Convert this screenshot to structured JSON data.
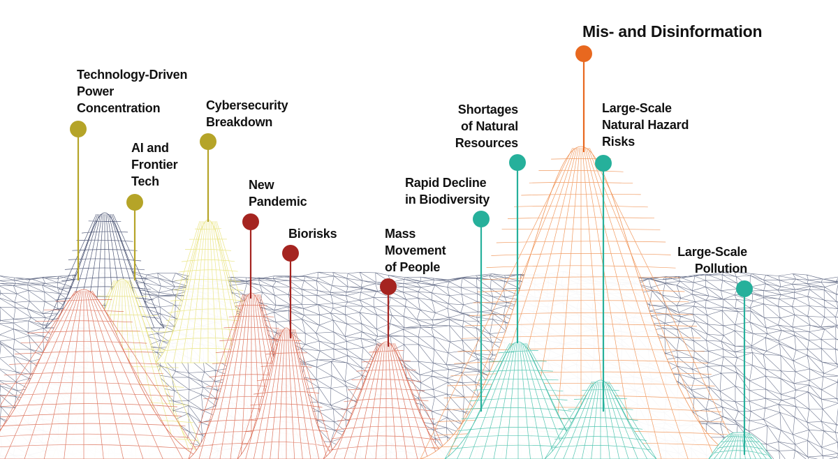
{
  "colors": {
    "background": "#ffffff",
    "terrain_mesh": "#3a4466",
    "technological": "#b5a428",
    "technological_mesh": "#e8e27a",
    "societal": "#a52420",
    "societal_mesh": "#d9674f",
    "misinformation": "#e8681f",
    "misinformation_mesh": "#ef8f4f",
    "environmental": "#26b09b",
    "environmental_mesh": "#3fbfa7",
    "label_text": "#111111"
  },
  "risks": [
    {
      "id": "tech-power",
      "label": "Technology-Driven\nPower\nConcentration",
      "group": "technological"
    },
    {
      "id": "ai-frontier",
      "label": "AI and\nFrontier\nTech",
      "group": "technological"
    },
    {
      "id": "cybersecurity",
      "label": "Cybersecurity\nBreakdown",
      "group": "technological"
    },
    {
      "id": "new-pandemic",
      "label": "New\nPandemic",
      "group": "societal"
    },
    {
      "id": "biorisks",
      "label": "Biorisks",
      "group": "societal"
    },
    {
      "id": "mass-movement",
      "label": "Mass\nMovement\nof People",
      "group": "societal"
    },
    {
      "id": "biodiversity",
      "label": "Rapid Decline\nin Biodiversity",
      "group": "environmental"
    },
    {
      "id": "natural-resources",
      "label": "Shortages\nof Natural\nResources",
      "group": "environmental"
    },
    {
      "id": "misinformation",
      "label": "Mis- and Disinformation",
      "group": "misinformation"
    },
    {
      "id": "natural-hazard",
      "label": "Large-Scale\nNatural Hazard\nRisks",
      "group": "environmental"
    },
    {
      "id": "pollution",
      "label": "Large-Scale\nPollution",
      "group": "environmental"
    }
  ]
}
